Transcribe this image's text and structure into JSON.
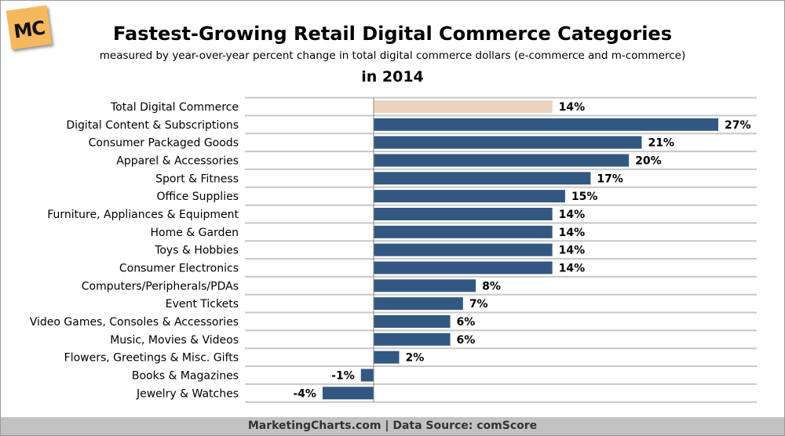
{
  "header": {
    "logo": "MC",
    "title": "Fastest-Growing Retail Digital Commerce Categories",
    "subtitle": "measured by year-over-year percent change in total digital commerce dollars (e-commerce and m-commerce)",
    "period": "in 2014"
  },
  "footer": {
    "text": "MarketingCharts.com | Data Source: comScore"
  },
  "chart_data": {
    "type": "bar",
    "orientation": "horizontal",
    "grid": true,
    "categories": [
      "Total Digital Commerce",
      "Digital Content & Subscriptions",
      "Consumer Packaged Goods",
      "Apparel & Accessories",
      "Sport & Fitness",
      "Office Supplies",
      "Furniture, Appliances & Equipment",
      "Home & Garden",
      "Toys & Hobbies",
      "Consumer Electronics",
      "Computers/Peripherals/PDAs",
      "Event Tickets",
      "Video Games, Consoles & Accessories",
      "Music, Movies & Videos",
      "Flowers, Greetings & Misc. Gifts",
      "Books & Magazines",
      "Jewelry & Watches"
    ],
    "values": [
      14,
      27,
      21,
      20,
      17,
      15,
      14,
      14,
      14,
      14,
      8,
      7,
      6,
      6,
      2,
      -1,
      -4
    ],
    "labels": [
      "14%",
      "27%",
      "21%",
      "20%",
      "17%",
      "15%",
      "14%",
      "14%",
      "14%",
      "14%",
      "8%",
      "7%",
      "6%",
      "6%",
      "2%",
      "-1%",
      "-4%"
    ],
    "unit": "%",
    "colors": {
      "highlight": "#ebd3c0",
      "bar": "#325882"
    }
  }
}
